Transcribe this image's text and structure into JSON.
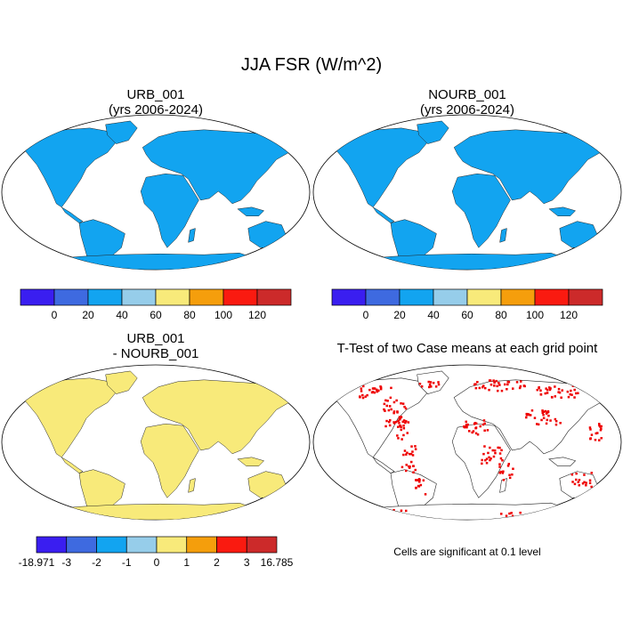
{
  "title": "JJA FSR (W/m^2)",
  "panels": {
    "urb": {
      "title": "URB_001",
      "subtitle": "(yrs 2006-2024)"
    },
    "nourb": {
      "title": "NOURB_001",
      "subtitle": "(yrs 2006-2024)"
    },
    "diff": {
      "title": "URB_001",
      "subtitle": "- NOURB_001"
    },
    "ttest": {
      "title": "T-Test of two Case means at each grid point",
      "note": "Cells are significant at 0.1 level"
    }
  },
  "chart_data": [
    {
      "type": "heatmap",
      "title": "URB_001",
      "subtitle": "(yrs 2006-2024)",
      "projection": "Robinson",
      "colorbar": {
        "ticks": [
          "0",
          "20",
          "40",
          "60",
          "80",
          "100",
          "120"
        ],
        "colors": [
          "#3a1ef0",
          "#3e6ae0",
          "#12a4f0",
          "#96cdea",
          "#f8ea7a",
          "#f59e0c",
          "#fa1a10",
          "#cc2a2a"
        ]
      }
    },
    {
      "type": "heatmap",
      "title": "NOURB_001",
      "subtitle": "(yrs 2006-2024)",
      "projection": "Robinson",
      "colorbar": {
        "ticks": [
          "0",
          "20",
          "40",
          "60",
          "80",
          "100",
          "120"
        ],
        "colors": [
          "#3a1ef0",
          "#3e6ae0",
          "#12a4f0",
          "#96cdea",
          "#f8ea7a",
          "#f59e0c",
          "#fa1a10",
          "#cc2a2a"
        ]
      }
    },
    {
      "type": "heatmap",
      "title": "URB_001",
      "subtitle": "- NOURB_001",
      "projection": "Robinson",
      "colorbar": {
        "ticks": [
          "-18.971",
          "-3",
          "-2",
          "-1",
          "0",
          "1",
          "2",
          "3",
          "16.785"
        ],
        "colors": [
          "#3a1ef0",
          "#3e6ae0",
          "#12a4f0",
          "#96cdea",
          "#f8ea7a",
          "#f59e0c",
          "#fa1a10",
          "#cc2a2a"
        ]
      }
    },
    {
      "type": "heatmap",
      "title": "T-Test of two Case means at each grid point",
      "projection": "Robinson",
      "significance_level": 0.1,
      "significant_color": "#ee0000"
    }
  ]
}
